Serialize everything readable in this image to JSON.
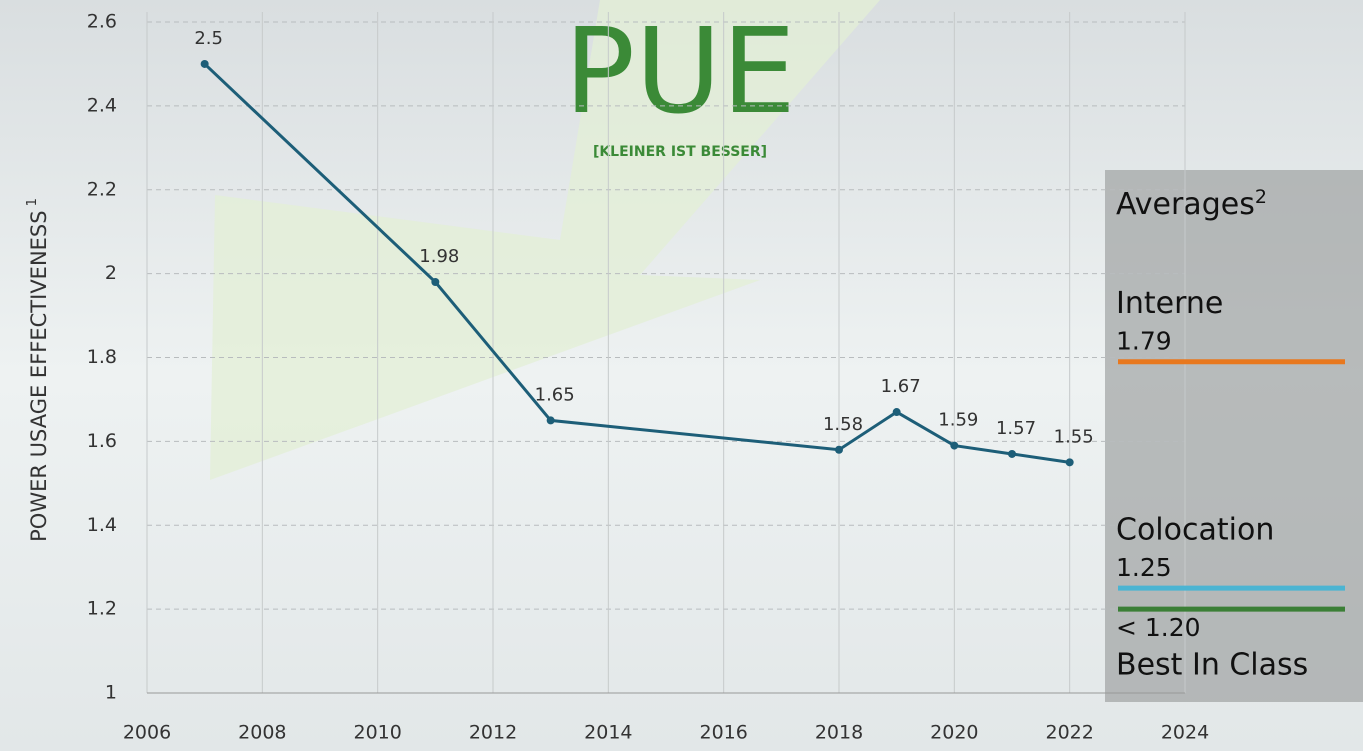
{
  "chart_data": {
    "type": "line",
    "title": "PUE",
    "subtitle": "[KLEINER IST BESSER]",
    "y_label": "POWER USAGE EFFECTIVENESS",
    "y_label_note": "1",
    "x": [
      2007,
      2011,
      2013,
      2018,
      2019,
      2020,
      2021,
      2022
    ],
    "series": [
      {
        "name": "PUE",
        "color": "#1d5e78",
        "values": [
          2.5,
          1.98,
          1.65,
          1.58,
          1.67,
          1.59,
          1.57,
          1.55
        ]
      }
    ],
    "xlim": [
      2006,
      2024
    ],
    "xticks": [
      2006,
      2008,
      2010,
      2012,
      2014,
      2016,
      2018,
      2020,
      2022,
      2024
    ],
    "ylim": [
      1,
      2.6
    ],
    "yticks": [
      1,
      1.2,
      1.4,
      1.6,
      1.8,
      2,
      2.2,
      2.4,
      2.6
    ],
    "grid": true,
    "legend_title": "Averages",
    "legend_title_note": "2",
    "reference_lines": [
      {
        "name": "Interne",
        "value": 1.79,
        "color": "#e8781e"
      },
      {
        "name": "Colocation",
        "value": 1.25,
        "color": "#4bb4d2"
      },
      {
        "name": "Best In Class",
        "value": 1.2,
        "value_label": "< 1.20",
        "color": "#3b7f36"
      }
    ]
  }
}
